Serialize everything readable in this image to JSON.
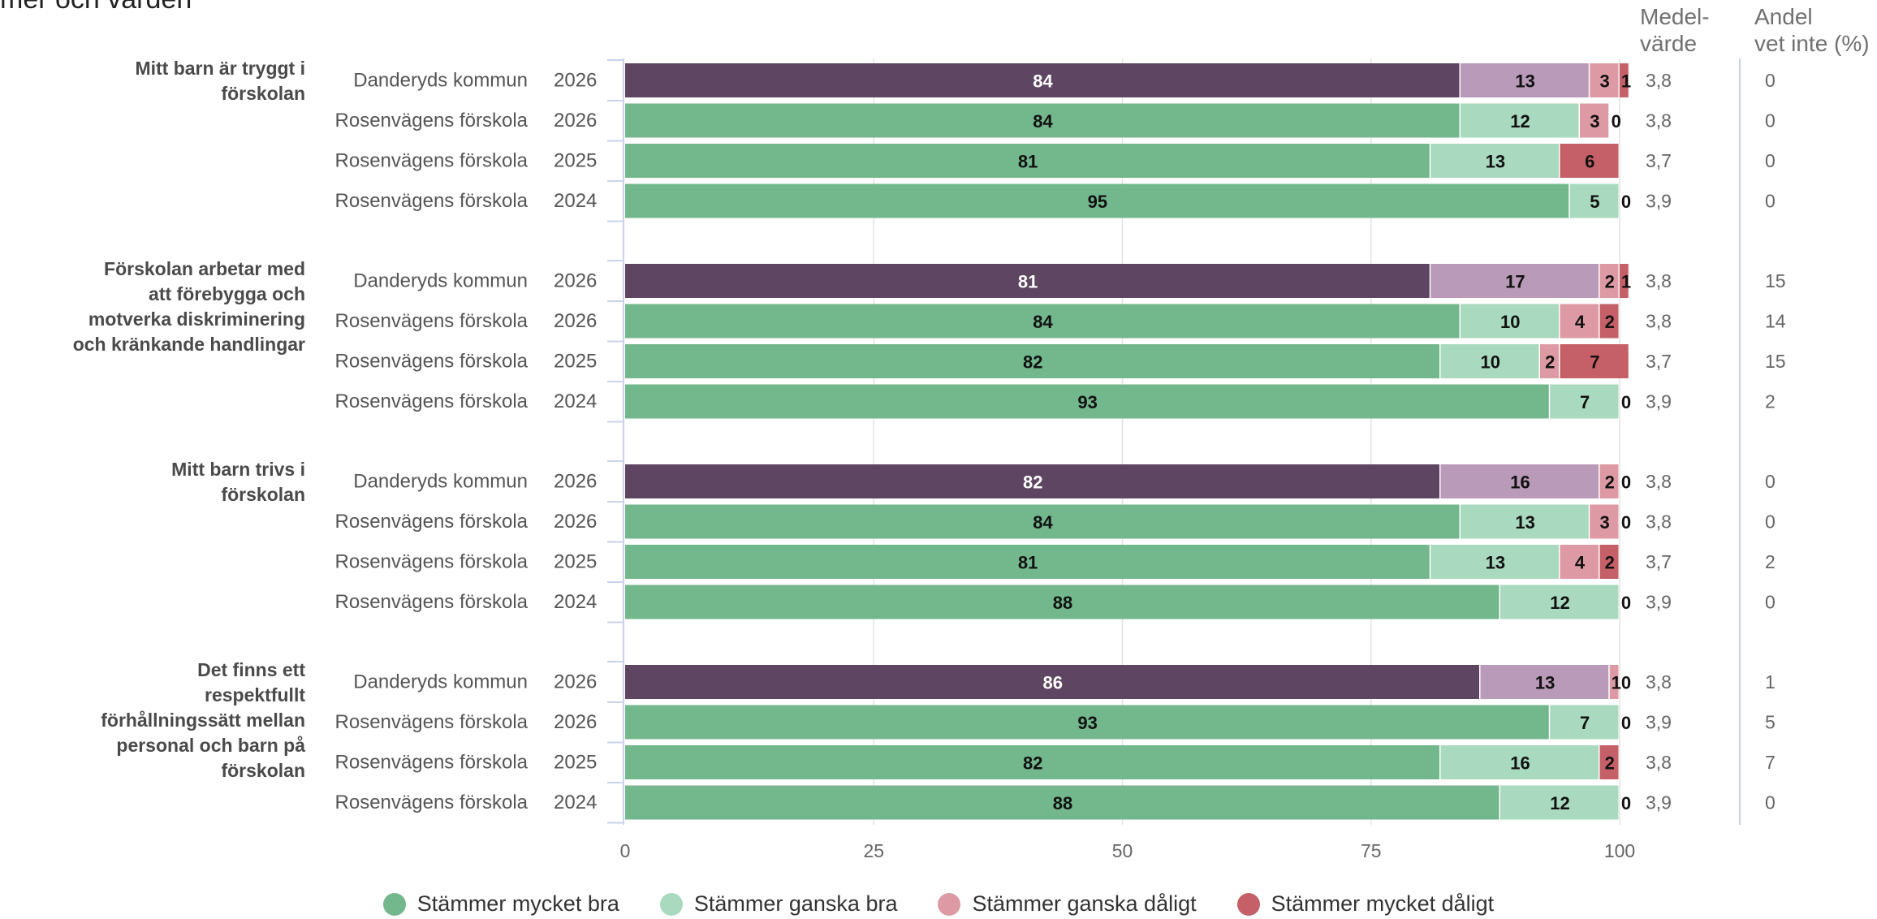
{
  "title": "mer och värden",
  "headers": {
    "mean": "Medel-\nvärde",
    "unknown": "Andel\nvet inte (%)"
  },
  "colors": {
    "dark_purple": "#5e4562",
    "light_purple": "#b99ab8",
    "green_dark": "#73b78d",
    "green_light": "#a9d9bf",
    "pink": "#dd9aa5",
    "red": "#c56068"
  },
  "legend": [
    {
      "label": "Stämmer mycket bra",
      "color": "#73b78d"
    },
    {
      "label": "Stämmer ganska bra",
      "color": "#a9d9bf"
    },
    {
      "label": "Stämmer ganska dåligt",
      "color": "#dd9aa5"
    },
    {
      "label": "Stämmer mycket dåligt",
      "color": "#c56068"
    }
  ],
  "chart_data": {
    "type": "bar",
    "orientation": "horizontal",
    "stacked": true,
    "xlim": [
      0,
      100
    ],
    "xticks": [
      0,
      25,
      50,
      75,
      100
    ],
    "grid": true,
    "legend_position": "bottom",
    "segments": [
      "Stämmer mycket bra",
      "Stämmer ganska bra",
      "Stämmer ganska dåligt",
      "Stämmer mycket dåligt"
    ],
    "groups": [
      {
        "question": "Mitt barn är tryggt i förskolan",
        "rows": [
          {
            "unit": "Danderyds kommun",
            "year": "2026",
            "values": [
              84,
              13,
              3,
              1
            ],
            "labels": [
              "84",
              "13",
              "3",
              "1"
            ],
            "mean": "3,8",
            "unknown": "0"
          },
          {
            "unit": "Rosenvägens förskola",
            "year": "2026",
            "values": [
              84,
              12,
              3,
              0
            ],
            "labels": [
              "84",
              "12",
              "3",
              "0"
            ],
            "mean": "3,8",
            "unknown": "0"
          },
          {
            "unit": "Rosenvägens förskola",
            "year": "2025",
            "values": [
              81,
              13,
              0,
              6
            ],
            "labels": [
              "81",
              "13",
              "0",
              "6"
            ],
            "mean": "3,7",
            "unknown": "0"
          },
          {
            "unit": "Rosenvägens förskola",
            "year": "2024",
            "values": [
              95,
              5,
              0,
              0
            ],
            "labels": [
              "95",
              "5",
              "0",
              ""
            ],
            "mean": "3,9",
            "unknown": "0"
          }
        ]
      },
      {
        "question": "Förskolan arbetar med att förebygga och motverka diskriminering och kränkande handlingar",
        "rows": [
          {
            "unit": "Danderyds kommun",
            "year": "2026",
            "values": [
              81,
              17,
              2,
              1
            ],
            "labels": [
              "81",
              "17",
              "2",
              "1"
            ],
            "mean": "3,8",
            "unknown": "15"
          },
          {
            "unit": "Rosenvägens förskola",
            "year": "2026",
            "values": [
              84,
              10,
              4,
              2
            ],
            "labels": [
              "84",
              "10",
              "4",
              "2"
            ],
            "mean": "3,8",
            "unknown": "14"
          },
          {
            "unit": "Rosenvägens förskola",
            "year": "2025",
            "values": [
              82,
              10,
              2,
              7
            ],
            "labels": [
              "82",
              "10",
              "2",
              "7"
            ],
            "mean": "3,7",
            "unknown": "15"
          },
          {
            "unit": "Rosenvägens förskola",
            "year": "2024",
            "values": [
              93,
              7,
              0,
              0
            ],
            "labels": [
              "93",
              "7",
              "0",
              ""
            ],
            "mean": "3,9",
            "unknown": "2"
          }
        ]
      },
      {
        "question": "Mitt barn trivs i förskolan",
        "rows": [
          {
            "unit": "Danderyds kommun",
            "year": "2026",
            "values": [
              82,
              16,
              2,
              0
            ],
            "labels": [
              "82",
              "16",
              "2",
              "0"
            ],
            "mean": "3,8",
            "unknown": "0"
          },
          {
            "unit": "Rosenvägens förskola",
            "year": "2026",
            "values": [
              84,
              13,
              3,
              0
            ],
            "labels": [
              "84",
              "13",
              "3",
              "0"
            ],
            "mean": "3,8",
            "unknown": "0"
          },
          {
            "unit": "Rosenvägens förskola",
            "year": "2025",
            "values": [
              81,
              13,
              4,
              2
            ],
            "labels": [
              "81",
              "13",
              "4",
              "2"
            ],
            "mean": "3,7",
            "unknown": "2"
          },
          {
            "unit": "Rosenvägens förskola",
            "year": "2024",
            "values": [
              88,
              12,
              0,
              0
            ],
            "labels": [
              "88",
              "12",
              "0",
              ""
            ],
            "mean": "3,9",
            "unknown": "0"
          }
        ]
      },
      {
        "question": "Det finns ett respektfullt förhållningssätt mellan personal och barn på förskolan",
        "rows": [
          {
            "unit": "Danderyds kommun",
            "year": "2026",
            "values": [
              86,
              13,
              1,
              0
            ],
            "labels": [
              "86",
              "13",
              "1",
              "0"
            ],
            "mean": "3,8",
            "unknown": "1"
          },
          {
            "unit": "Rosenvägens förskola",
            "year": "2026",
            "values": [
              93,
              7,
              0,
              0
            ],
            "labels": [
              "93",
              "7",
              "0",
              ""
            ],
            "mean": "3,9",
            "unknown": "5"
          },
          {
            "unit": "Rosenvägens förskola",
            "year": "2025",
            "values": [
              82,
              16,
              0,
              2
            ],
            "labels": [
              "82",
              "16",
              "0",
              "2"
            ],
            "mean": "3,8",
            "unknown": "7"
          },
          {
            "unit": "Rosenvägens förskola",
            "year": "2024",
            "values": [
              88,
              12,
              0,
              0
            ],
            "labels": [
              "88",
              "12",
              "0",
              ""
            ],
            "mean": "3,9",
            "unknown": "0"
          }
        ]
      }
    ]
  }
}
